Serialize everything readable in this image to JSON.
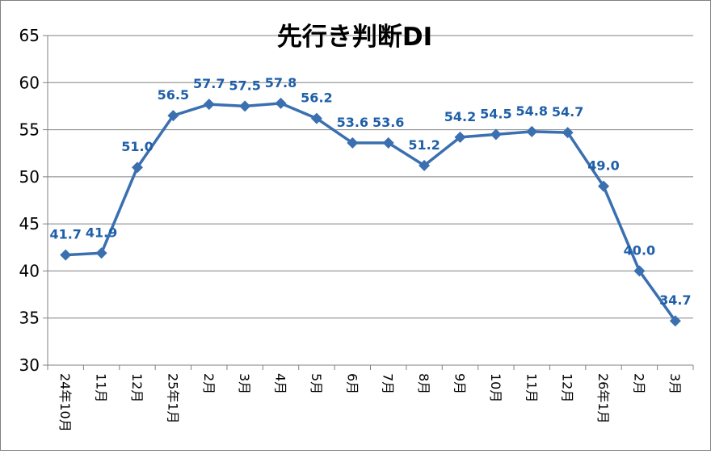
{
  "chart_data": {
    "type": "line",
    "title": "先行き判断DI",
    "categories": [
      "24年10月",
      "11月",
      "12月",
      "25年1月",
      "2月",
      "3月",
      "4月",
      "5月",
      "6月",
      "7月",
      "8月",
      "9月",
      "10月",
      "11月",
      "12月",
      "26年1月",
      "2月",
      "3月"
    ],
    "series": [
      {
        "values": [
          41.7,
          41.9,
          51.0,
          56.5,
          57.7,
          57.5,
          57.8,
          56.2,
          53.6,
          53.6,
          51.2,
          54.2,
          54.5,
          54.8,
          54.7,
          49.0,
          40.0,
          34.7
        ]
      }
    ],
    "data_labels": [
      "41.7",
      "41.9",
      "51.0",
      "56.5",
      "57.7",
      "57.5",
      "57.8",
      "56.2",
      "53.6",
      "53.6",
      "51.2",
      "54.2",
      "54.5",
      "54.8",
      "54.7",
      "49.0",
      "40.0",
      "34.7"
    ],
    "ylim": [
      30,
      65
    ],
    "yticks": [
      "30",
      "35",
      "40",
      "45",
      "50",
      "55",
      "60",
      "65"
    ],
    "xlabel": "",
    "ylabel": "",
    "grid": true,
    "legend": "none",
    "colors": {
      "line": "#3a6fb0",
      "marker": "#3a6fb0",
      "labels": "#1f5fa8",
      "grid": "#808080"
    }
  }
}
